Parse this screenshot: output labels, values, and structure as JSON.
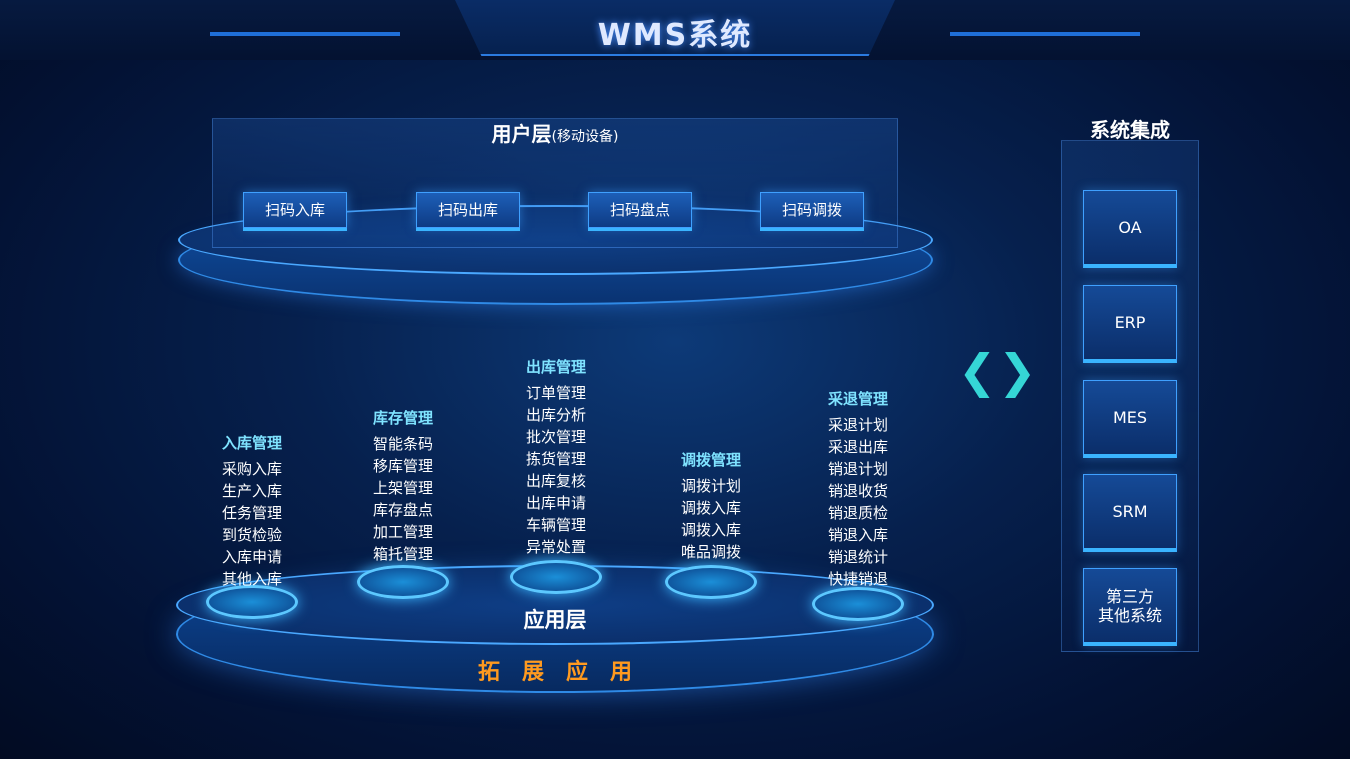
{
  "header": {
    "title": "WMS系统"
  },
  "user_layer": {
    "title": "用户层",
    "subtitle": "(移动设备)",
    "buttons": [
      "扫码入库",
      "扫码出库",
      "扫码盘点",
      "扫码调拨"
    ]
  },
  "app_layer": {
    "title": "应用层",
    "footer": "拓　展　应　用",
    "modules": [
      {
        "title": "入库管理",
        "items": [
          "采购入库",
          "生产入库",
          "任务管理",
          "到货检验",
          "入库申请",
          "其他入库"
        ]
      },
      {
        "title": "库存管理",
        "items": [
          "智能条码",
          "移库管理",
          "上架管理",
          "库存盘点",
          "加工管理",
          "箱托管理"
        ]
      },
      {
        "title": "出库管理",
        "items": [
          "订单管理",
          "出库分析",
          "批次管理",
          "拣货管理",
          "出库复核",
          "出库申请",
          "车辆管理",
          "异常处置"
        ]
      },
      {
        "title": "调拨管理",
        "items": [
          "调拨计划",
          "调拨入库",
          "调拨入库",
          "唯品调拨"
        ]
      },
      {
        "title": "采退管理",
        "items": [
          "采退计划",
          "采退出库",
          "销退计划",
          "销退收货",
          "销退质检",
          "销退入库",
          "销退统计",
          "快捷销退"
        ]
      }
    ]
  },
  "integration": {
    "title": "系统集成",
    "systems": [
      "OA",
      "ERP",
      "MES",
      "SRM",
      "第三方\n其他系统"
    ]
  },
  "icons": {
    "arrows": "chevron-left-right-icon"
  },
  "colors": {
    "accent": "#7fe3ff",
    "footer": "#ff9a1f",
    "background": "#06204d"
  }
}
